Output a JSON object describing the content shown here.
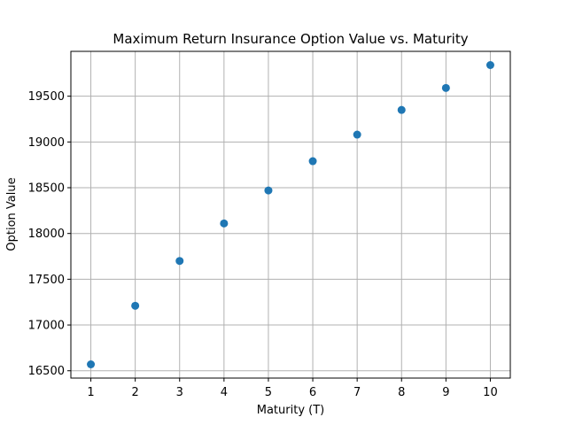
{
  "chart_data": {
    "type": "scatter",
    "title": "Maximum Return Insurance Option Value vs. Maturity",
    "xlabel": "Maturity (T)",
    "ylabel": "Option Value",
    "x": [
      1,
      2,
      3,
      4,
      5,
      6,
      7,
      8,
      9,
      10
    ],
    "y": [
      16570,
      17210,
      17700,
      18110,
      18470,
      18790,
      19080,
      19350,
      19590,
      19840
    ],
    "xlim": [
      0.55,
      10.45
    ],
    "ylim": [
      16420,
      19990
    ],
    "xticks": [
      "1",
      "2",
      "3",
      "4",
      "5",
      "6",
      "7",
      "8",
      "9",
      "10"
    ],
    "yticks": [
      "16500",
      "17000",
      "17500",
      "18000",
      "18500",
      "19000",
      "19500"
    ],
    "grid": true,
    "marker_color": "#1f77b4"
  }
}
